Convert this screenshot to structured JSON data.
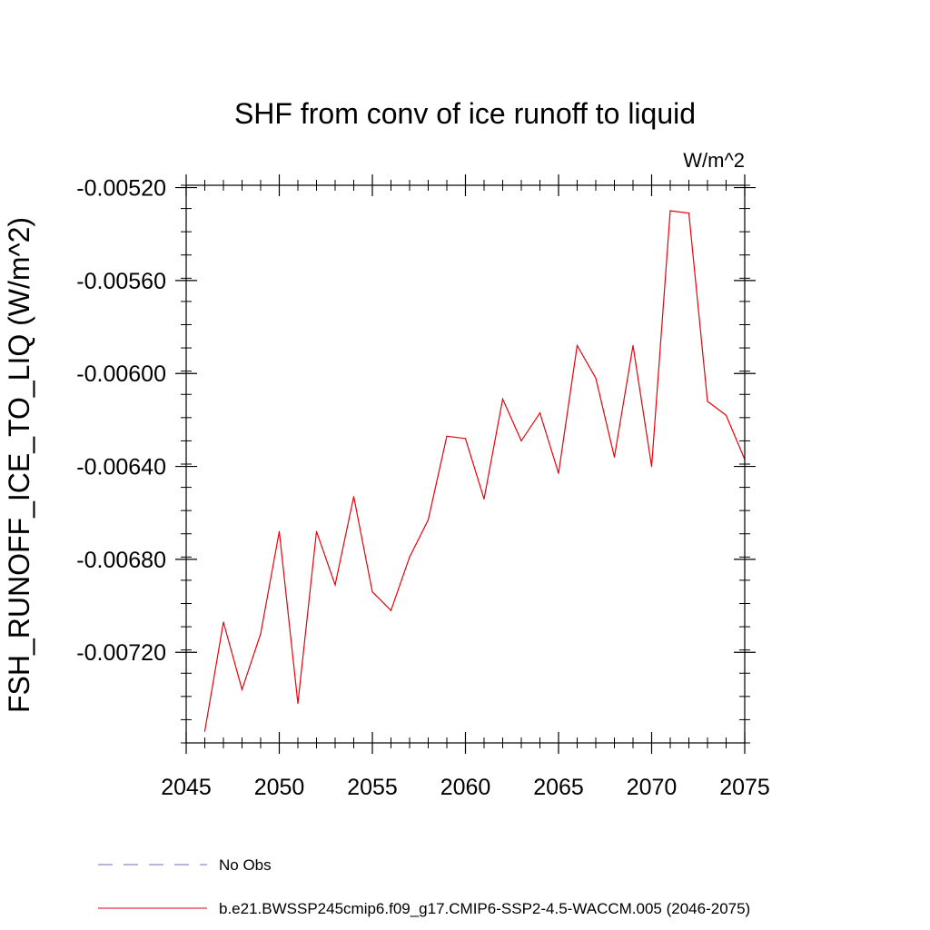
{
  "chart_data": {
    "type": "line",
    "title": "SHF from conv of ice runoff to liquid",
    "units": "W/m^2",
    "xlabel": "",
    "ylabel": "FSH_RUNOFF_ICE_TO_LIQ  (W/m^2)",
    "xlim": [
      2045,
      2075
    ],
    "ylim": [
      -0.00759,
      -0.00519
    ],
    "x_ticks": [
      2045,
      2050,
      2055,
      2060,
      2065,
      2070,
      2075
    ],
    "x_tick_labels": [
      "2045",
      "2050",
      "2055",
      "2060",
      "2065",
      "2070",
      "2075"
    ],
    "y_ticks": [
      -0.0052,
      -0.0056,
      -0.006,
      -0.0064,
      -0.0068,
      -0.0072
    ],
    "y_tick_labels": [
      "-0.00520",
      "-0.00560",
      "-0.00600",
      "-0.00640",
      "-0.00680",
      "-0.00720"
    ],
    "grid": false,
    "legend_position": "bottom",
    "series": [
      {
        "name": "b.e21.BWSSP245cmip6.f09_g17.CMIP6-SSP2-4.5-WACCM.005 (2046-2075)",
        "color": "#e8000b",
        "style": "solid",
        "x": [
          2046,
          2047,
          2048,
          2049,
          2050,
          2051,
          2052,
          2053,
          2054,
          2055,
          2056,
          2057,
          2058,
          2059,
          2060,
          2061,
          2062,
          2063,
          2064,
          2065,
          2066,
          2067,
          2068,
          2069,
          2070,
          2071,
          2072,
          2073,
          2074,
          2075
        ],
        "values": [
          -0.00754,
          -0.00707,
          -0.00736,
          -0.00712,
          -0.00668,
          -0.00742,
          -0.00668,
          -0.00691,
          -0.00653,
          -0.00694,
          -0.00702,
          -0.00679,
          -0.00663,
          -0.00627,
          -0.00628,
          -0.00654,
          -0.00611,
          -0.00629,
          -0.00617,
          -0.00643,
          -0.00588,
          -0.00602,
          -0.00636,
          -0.00588,
          -0.0064,
          -0.0053,
          -0.00531,
          -0.00612,
          -0.00618,
          -0.00637
        ]
      }
    ],
    "legend": [
      {
        "label": "No Obs",
        "color": "#7b68c8",
        "style": "dashed"
      },
      {
        "label": "b.e21.BWSSP245cmip6.f09_g17.CMIP6-SSP2-4.5-WACCM.005 (2046-2075)",
        "color": "#e8000b",
        "style": "solid"
      }
    ]
  }
}
